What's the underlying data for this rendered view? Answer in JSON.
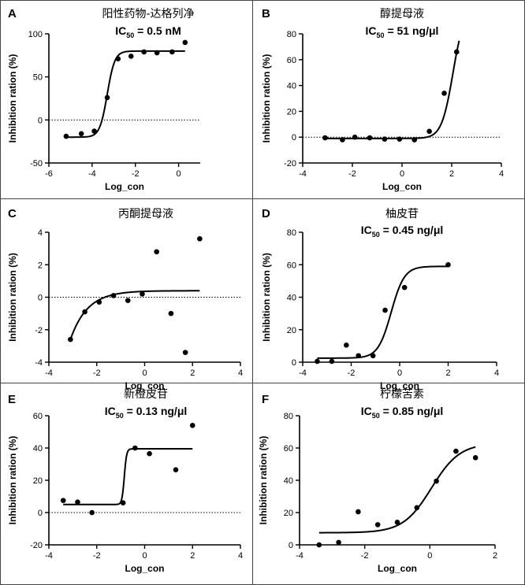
{
  "figure": {
    "x_axis_label": "Log_con",
    "y_axis_label": "Inhibition ration (%)"
  },
  "chart_data": [
    {
      "id": "A",
      "letter": "A",
      "type": "scatter",
      "title": "阳性药物-达格列净",
      "ic50_prefix": "IC",
      "ic50_sub": "50",
      "ic50_value": " = 0.5 nM",
      "xlabel": "Log_con",
      "ylabel": "Inhibition ration (%)",
      "xlim": [
        -6,
        1
      ],
      "ylim": [
        -50,
        100
      ],
      "xticks": [
        -6,
        -4,
        -2,
        0
      ],
      "yticks": [
        -50,
        0,
        50,
        100
      ],
      "points": [
        {
          "x": -5.2,
          "y": -19
        },
        {
          "x": -4.5,
          "y": -16
        },
        {
          "x": -3.9,
          "y": -13
        },
        {
          "x": -3.3,
          "y": 26
        },
        {
          "x": -2.8,
          "y": 71
        },
        {
          "x": -2.2,
          "y": 74
        },
        {
          "x": -1.6,
          "y": 79
        },
        {
          "x": -1.0,
          "y": 78
        },
        {
          "x": -0.3,
          "y": 79
        },
        {
          "x": 0.3,
          "y": 90
        }
      ],
      "fit": {
        "model": "sigmoid",
        "bottom": -20,
        "top": 80,
        "ec50": -3.3,
        "hill": 2.5,
        "x_range": [
          -5.2,
          0.3
        ]
      },
      "baseline": 0
    },
    {
      "id": "B",
      "letter": "B",
      "type": "scatter",
      "title": "醇提母液",
      "ic50_prefix": "IC",
      "ic50_sub": "50",
      "ic50_value": " = 51 ng/μl",
      "xlabel": "Log_con",
      "ylabel": "Inhibition ration (%)",
      "xlim": [
        -4,
        4
      ],
      "ylim": [
        -20,
        80
      ],
      "xticks": [
        -4,
        -2,
        0,
        2,
        4
      ],
      "yticks": [
        -20,
        0,
        20,
        40,
        60,
        80
      ],
      "points": [
        {
          "x": -3.1,
          "y": -0.5
        },
        {
          "x": -2.4,
          "y": -2
        },
        {
          "x": -1.9,
          "y": 0
        },
        {
          "x": -1.3,
          "y": -0.5
        },
        {
          "x": -0.7,
          "y": -1.5
        },
        {
          "x": -0.1,
          "y": -1.5
        },
        {
          "x": 0.5,
          "y": -2
        },
        {
          "x": 1.1,
          "y": 4.5
        },
        {
          "x": 1.7,
          "y": 34
        },
        {
          "x": 2.2,
          "y": 66
        }
      ],
      "fit": {
        "model": "sigmoid",
        "bottom": -1,
        "top": 100,
        "ec50": 2.05,
        "hill": 1.9,
        "x_range": [
          -3.1,
          2.3
        ]
      },
      "baseline": 0
    },
    {
      "id": "C",
      "letter": "C",
      "type": "scatter",
      "title": "丙酮提母液",
      "xlabel": "Log_con",
      "ylabel": "Inhibition ration (%)",
      "xlim": [
        -4,
        4
      ],
      "ylim": [
        -4,
        4
      ],
      "xticks": [
        -4,
        -2,
        0,
        2,
        4
      ],
      "yticks": [
        -4,
        -2,
        0,
        2,
        4
      ],
      "points": [
        {
          "x": -3.1,
          "y": -2.6
        },
        {
          "x": -2.5,
          "y": -0.9
        },
        {
          "x": -1.9,
          "y": -0.3
        },
        {
          "x": -1.3,
          "y": 0.1
        },
        {
          "x": -0.7,
          "y": -0.2
        },
        {
          "x": -0.1,
          "y": 0.2
        },
        {
          "x": 0.5,
          "y": 2.8
        },
        {
          "x": 1.1,
          "y": -1.0
        },
        {
          "x": 1.7,
          "y": -3.4
        },
        {
          "x": 2.3,
          "y": 3.6
        }
      ],
      "fit": {
        "model": "exp",
        "plateau": 0.4,
        "span": -3.0,
        "k": 1.4,
        "x0": -3.1,
        "x_range": [
          -3.1,
          2.3
        ]
      },
      "baseline": 0
    },
    {
      "id": "D",
      "letter": "D",
      "type": "scatter",
      "title": "柚皮苷",
      "ic50_prefix": "IC",
      "ic50_sub": "50",
      "ic50_value": " = 0.45 ng/μl",
      "xlabel": "Log_con",
      "ylabel": "Inhibition ration (%)",
      "xlim": [
        -4,
        4
      ],
      "ylim": [
        0,
        80
      ],
      "xticks": [
        -4,
        -2,
        0,
        2,
        4
      ],
      "yticks": [
        0,
        20,
        40,
        60,
        80
      ],
      "points": [
        {
          "x": -3.4,
          "y": 0.5
        },
        {
          "x": -2.8,
          "y": 0.5
        },
        {
          "x": -2.2,
          "y": 10.5
        },
        {
          "x": -1.7,
          "y": 4
        },
        {
          "x": -1.1,
          "y": 4
        },
        {
          "x": -0.6,
          "y": 32
        },
        {
          "x": 0.2,
          "y": 46
        },
        {
          "x": 2.0,
          "y": 60
        }
      ],
      "fit": {
        "model": "sigmoid",
        "bottom": 2.5,
        "top": 59,
        "ec50": -0.35,
        "hill": 1.6,
        "x_range": [
          -3.4,
          2.0
        ]
      },
      "baseline": null
    },
    {
      "id": "E",
      "letter": "E",
      "type": "scatter",
      "title": "新橙皮苷",
      "ic50_prefix": "IC",
      "ic50_sub": "50",
      "ic50_value": " = 0.13 ng/μl",
      "xlabel": "Log_con",
      "ylabel": "Inhibition ration (%)",
      "xlim": [
        -4,
        4
      ],
      "ylim": [
        -20,
        60
      ],
      "xticks": [
        -4,
        -2,
        0,
        2,
        4
      ],
      "yticks": [
        -20,
        0,
        20,
        40,
        60
      ],
      "points": [
        {
          "x": -3.4,
          "y": 7.5
        },
        {
          "x": -2.8,
          "y": 6.5
        },
        {
          "x": -2.2,
          "y": 0
        },
        {
          "x": -0.9,
          "y": 6
        },
        {
          "x": -0.4,
          "y": 40
        },
        {
          "x": 0.2,
          "y": 36.5
        },
        {
          "x": 1.3,
          "y": 26.5
        },
        {
          "x": 2.0,
          "y": 54
        }
      ],
      "fit": {
        "model": "sigmoid",
        "bottom": 5,
        "top": 39.5,
        "ec50": -0.85,
        "hill": 9,
        "x_range": [
          -3.4,
          2.0
        ]
      },
      "baseline": 0
    },
    {
      "id": "F",
      "letter": "F",
      "type": "scatter",
      "title": "柠檬苦素",
      "ic50_prefix": "IC",
      "ic50_sub": "50",
      "ic50_value": " = 0.85 ng/μl",
      "xlabel": "Log_con",
      "ylabel": "Inhibition ration (%)",
      "xlim": [
        -4,
        2
      ],
      "ylim": [
        0,
        80
      ],
      "xticks": [
        -4,
        -2,
        0,
        2
      ],
      "yticks": [
        0,
        20,
        40,
        60,
        80
      ],
      "points": [
        {
          "x": -3.4,
          "y": 0
        },
        {
          "x": -2.8,
          "y": 1.5
        },
        {
          "x": -2.2,
          "y": 20.5
        },
        {
          "x": -1.6,
          "y": 12.5
        },
        {
          "x": -1.0,
          "y": 14
        },
        {
          "x": -0.4,
          "y": 23
        },
        {
          "x": 0.2,
          "y": 39.5
        },
        {
          "x": 0.8,
          "y": 58
        },
        {
          "x": 1.4,
          "y": 54
        }
      ],
      "fit": {
        "model": "sigmoid",
        "bottom": 7.5,
        "top": 63,
        "ec50": 0.05,
        "hill": 1.0,
        "x_range": [
          -3.4,
          1.4
        ]
      },
      "baseline": null
    }
  ]
}
